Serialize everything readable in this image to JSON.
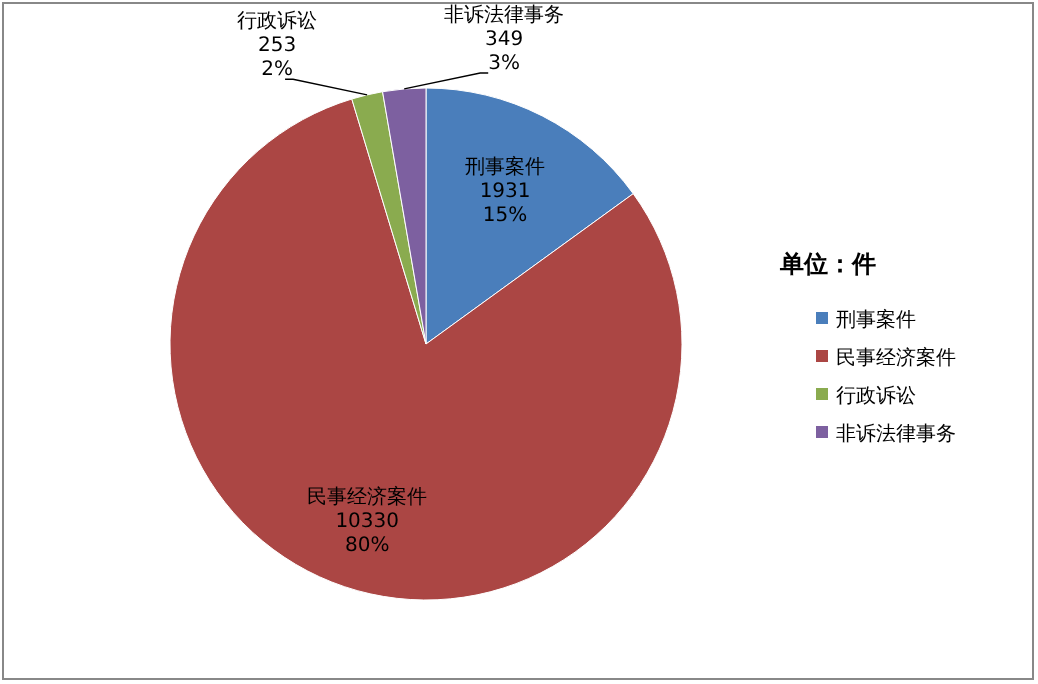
{
  "chart_data": {
    "type": "pie",
    "legend_title": "单位：件",
    "legend": "right",
    "categories": [
      "刑事案件",
      "民事经济案件",
      "行政诉讼",
      "非诉法律事务"
    ],
    "values": [
      1931,
      10330,
      253,
      349
    ],
    "value_labels": [
      "1931\n15%",
      "10330\n80%",
      "253\n2%",
      "349\n3%"
    ],
    "colors": [
      "#4a7ebb",
      "#ab4644",
      "#8aab4f",
      "#7d60a0"
    ]
  }
}
